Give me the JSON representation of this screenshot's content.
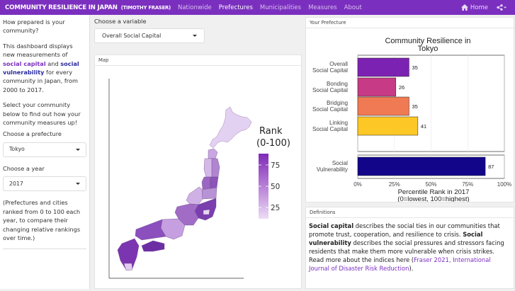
{
  "nav": {
    "brand": "COMMUNITY RESILIENCE IN JAPAN",
    "author": "(TIMOTHY FRASER)",
    "links": [
      "Nationwide",
      "Prefectures",
      "Municipalities",
      "Measures",
      "About"
    ],
    "active": "Prefectures",
    "home": "Home"
  },
  "sidebar": {
    "question": "How prepared is your community?",
    "intro_a": "This dashboard displays new measurements of ",
    "intro_b": "social capital",
    "intro_c": " and ",
    "intro_d": "social vulnerability",
    "intro_e": " for every community in Japan, from 2000 to 2017.",
    "select_prompt": "Select your community below to find out how your community measures up!",
    "prefecture_label": "Choose a prefecture",
    "prefecture_value": "Tokyo",
    "year_label": "Choose a year",
    "year_value": "2017",
    "note": "(Prefectures and cities ranked from 0 to 100 each year, to compare their changing relative rankings over time.)"
  },
  "variable": {
    "label": "Choose a variable",
    "value": "Overall Social Capital"
  },
  "map": {
    "header": "Map",
    "legend_title": [
      "Rank",
      "(0-100)"
    ],
    "legend_ticks": [
      "75",
      "50",
      "25"
    ]
  },
  "chart_panel": {
    "header": "Your Prefecture"
  },
  "chart_data": {
    "type": "bar",
    "orientation": "horizontal",
    "title": [
      "Community Resilience in",
      "Tokyo"
    ],
    "categories": [
      [
        "Overall",
        "Social Capital"
      ],
      [
        "Bonding",
        "Social Capital"
      ],
      [
        "Bridging",
        "Social Capital"
      ],
      [
        "Linking",
        "Social Capital"
      ],
      [
        "Social",
        "Vulnerability"
      ]
    ],
    "values": [
      35,
      26,
      35,
      41,
      87
    ],
    "colors": [
      "#7c22b2",
      "#c73a86",
      "#f07a53",
      "#fdc826",
      "#12058a"
    ],
    "xticks": [
      "0%",
      "25%",
      "50%",
      "75%",
      "100%"
    ],
    "xlim": [
      0,
      100
    ],
    "xlabel": [
      "Percentile Rank in 2017",
      "(0=lowest, 100=highest)"
    ]
  },
  "definitions": {
    "header": "Definitions",
    "t1": "Social capital",
    "t2": " describes the social ties in our communities that promote trust, cooperation, and resilience to crisis. ",
    "t3": "Social vulnerability",
    "t4": " describes the social pressures and stressors facing residents that make them more vulnerable when crisis strikes. Read more about the indices here (",
    "t5": "Fraser 2021, International Journal of Disaster Risk Reduction",
    "t6": ")."
  }
}
